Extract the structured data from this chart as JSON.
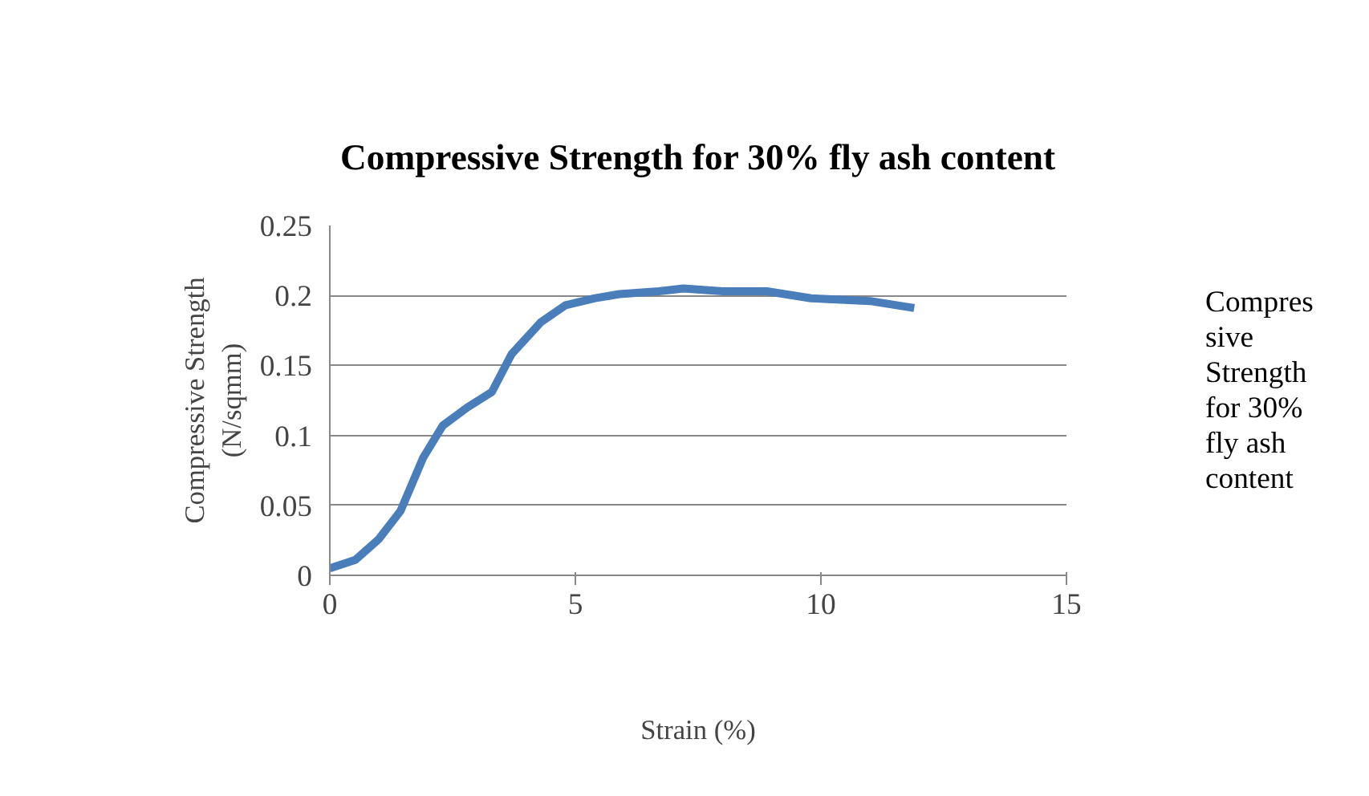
{
  "chart_data": {
    "type": "line",
    "title": "Compressive Strength for 30% fly ash content",
    "xlabel": "Strain (%)",
    "ylabel": "Compressive Strength\n(N/sqmm)",
    "x": [
      0,
      0.52,
      1.0,
      1.44,
      1.9,
      2.3,
      2.8,
      3.3,
      3.7,
      4.3,
      4.8,
      5.4,
      5.9,
      6.7,
      7.2,
      8.0,
      8.9,
      9.8,
      11.0,
      11.9
    ],
    "series": [
      {
        "name": "Compressive Strength for 30% fly ash content",
        "color": "#4a7ebb",
        "values": [
          0.005,
          0.011,
          0.026,
          0.046,
          0.084,
          0.107,
          0.12,
          0.131,
          0.158,
          0.181,
          0.193,
          0.198,
          0.201,
          0.203,
          0.205,
          0.203,
          0.203,
          0.198,
          0.196,
          0.191
        ]
      }
    ],
    "xlim": [
      0,
      15
    ],
    "xticks": [
      0,
      5,
      10,
      15
    ],
    "ylim": [
      0,
      0.25
    ],
    "yticks": [
      0,
      0.05,
      0.1,
      0.15,
      0.2,
      0.25
    ],
    "grid": "y",
    "legend": "right",
    "marker": "none",
    "line_style": "solid"
  }
}
